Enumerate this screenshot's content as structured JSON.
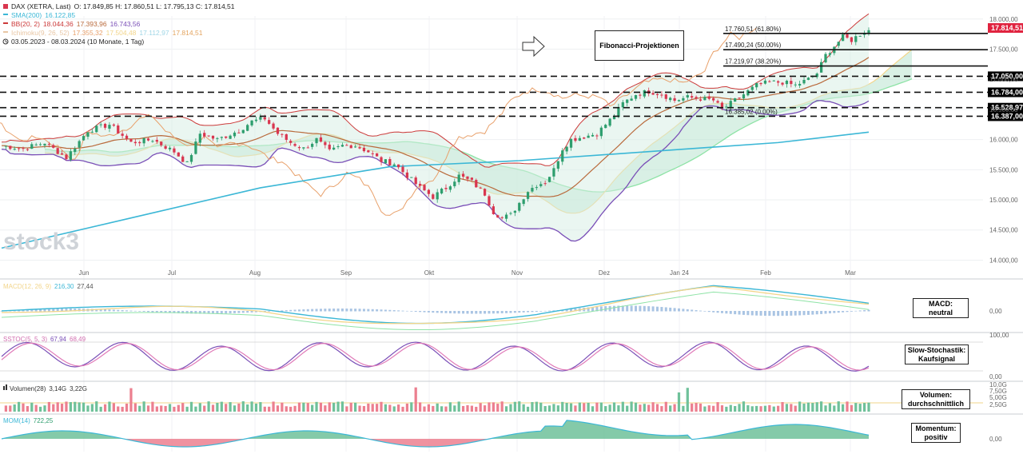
{
  "header": {
    "instrument": "DAX (XETRA, Last)",
    "ohlc": "O: 17.849,85  H: 17.860,51  L: 17.795,13  C: 17.814,51",
    "sma_label": "SMA(200)",
    "sma_value": "16.122,85",
    "bb_label": "BB(20, 2)",
    "bb_values": [
      "18.044,36",
      "17.393,96",
      "16.743,56"
    ],
    "ichimoku_label": "Ichimoku(9, 26, 52)",
    "ichimoku_values": [
      "17.355,32",
      "17.504,48",
      "17.112,97",
      "17.814,51"
    ],
    "period": "03.05.2023 - 08.03.2024  (10 Monate, 1 Tag)"
  },
  "watermark": "stock3",
  "annotations": {
    "fibonacci_box": "Fibonacci-Projektionen",
    "macd_box": [
      "MACD:",
      "neutral"
    ],
    "stoch_box": [
      "Slow-Stochastik:",
      "Kaufsignal"
    ],
    "volume_box": [
      "Volumen:",
      "durchschnittlich"
    ],
    "momentum_box": [
      "Momentum:",
      "positiv"
    ]
  },
  "indicators": {
    "macd": {
      "label": "MACD(12, 26, 9)",
      "values": [
        "216,30",
        "27,44"
      ]
    },
    "stoch": {
      "label": "SSTOC(5, 5, 3)",
      "values": [
        "67,94",
        "68,49"
      ]
    },
    "volume": {
      "label": "Volumen(28)",
      "values": [
        "3,14G",
        "3,22G"
      ]
    },
    "momentum": {
      "label": "MOM(14)",
      "values": [
        "722,25"
      ]
    }
  },
  "colors": {
    "up": "#2e9e6e",
    "down": "#d9364f",
    "sma": "#3bb7d6",
    "bb": "#cc3a3a",
    "bb_band": "#7a4fb7",
    "ichimoku_cloud_up": "#b9e4cf",
    "ichimoku_cloud_down": "#f6c6cf",
    "tenkan": "#e8a06a",
    "kijun": "#b96a3c",
    "chikou": "#f2d58a",
    "price_label_bg": "#e0233f",
    "level_label_bg": "#000000"
  },
  "chart_data": {
    "type": "candlestick",
    "title": "DAX (XETRA, Last)",
    "ylim": [
      13900,
      18050
    ],
    "y_ticks": [
      "18.000,00",
      "17.500,00",
      "17.000,00",
      "16.500,00",
      "16.000,00",
      "15.500,00",
      "15.000,00",
      "14.500,00",
      "14.000,00"
    ],
    "x_ticks": [
      "Jun",
      "Jul",
      "Aug",
      "Sep",
      "Okt",
      "Nov",
      "Dez",
      "Jan 24",
      "Feb",
      "Mar"
    ],
    "close_path": [
      [
        0,
        15900
      ],
      [
        5,
        15850
      ],
      [
        10,
        15950
      ],
      [
        15,
        15700
      ],
      [
        20,
        16150
      ],
      [
        25,
        16250
      ],
      [
        30,
        15950
      ],
      [
        35,
        16000
      ],
      [
        40,
        15800
      ],
      [
        43,
        15600
      ],
      [
        46,
        16100
      ],
      [
        50,
        16000
      ],
      [
        55,
        16150
      ],
      [
        58,
        16300
      ],
      [
        61,
        16350
      ],
      [
        64,
        16100
      ],
      [
        67,
        15950
      ],
      [
        70,
        15850
      ],
      [
        73,
        16000
      ],
      [
        76,
        15800
      ],
      [
        79,
        15900
      ],
      [
        82,
        15900
      ],
      [
        85,
        15800
      ],
      [
        88,
        15650
      ],
      [
        91,
        15600
      ],
      [
        94,
        15400
      ],
      [
        97,
        15200
      ],
      [
        100,
        15050
      ],
      [
        103,
        15200
      ],
      [
        106,
        15400
      ],
      [
        109,
        15300
      ],
      [
        112,
        15100
      ],
      [
        114,
        14800
      ],
      [
        116,
        14700
      ],
      [
        118,
        14750
      ],
      [
        120,
        14950
      ],
      [
        122,
        15150
      ],
      [
        124,
        15250
      ],
      [
        126,
        15300
      ],
      [
        128,
        15500
      ],
      [
        130,
        15850
      ],
      [
        132,
        16000
      ],
      [
        135,
        16050
      ],
      [
        138,
        16100
      ],
      [
        140,
        16250
      ],
      [
        142,
        16400
      ],
      [
        144,
        16600
      ],
      [
        147,
        16750
      ],
      [
        150,
        16800
      ],
      [
        153,
        16750
      ],
      [
        156,
        16650
      ],
      [
        159,
        16700
      ],
      [
        162,
        16680
      ],
      [
        165,
        16650
      ],
      [
        167,
        16500
      ],
      [
        169,
        16600
      ],
      [
        172,
        16750
      ],
      [
        175,
        16900
      ],
      [
        178,
        16950
      ],
      [
        181,
        16950
      ],
      [
        184,
        16900
      ],
      [
        187,
        17000
      ],
      [
        189,
        17100
      ],
      [
        191,
        17400
      ],
      [
        193,
        17550
      ],
      [
        195,
        17700
      ],
      [
        197,
        17650
      ],
      [
        199,
        17750
      ],
      [
        201,
        17814
      ]
    ],
    "last_price": "17.814,51",
    "level_lines": [
      {
        "value": 17050,
        "label": "17.050,00"
      },
      {
        "value": 16784,
        "label": "16.784,00"
      },
      {
        "value": 16529,
        "label": "16.528,97"
      },
      {
        "value": 16387,
        "label": "16.387,00"
      }
    ],
    "fibonacci_levels": [
      {
        "value": 17760.51,
        "label": "17.760,51 (61.80%)"
      },
      {
        "value": 17490.24,
        "label": "17.490,24 (50.00%)"
      },
      {
        "value": 17219.97,
        "label": "17.219,97 (38.20%)"
      },
      {
        "value": 16385.02,
        "label": "16.385,02 (0.00%)"
      }
    ],
    "sma200_path": [
      [
        0,
        14200
      ],
      [
        30,
        14700
      ],
      [
        60,
        15200
      ],
      [
        90,
        15550
      ],
      [
        120,
        15650
      ],
      [
        150,
        15800
      ],
      [
        180,
        15950
      ],
      [
        201,
        16123
      ]
    ],
    "macd_axis": [
      "0,00"
    ],
    "stoch_axis": [
      "100,00",
      "0,00"
    ],
    "volume_axis": [
      "10,0G",
      "7,50G",
      "5,00G",
      "2,50G"
    ],
    "momentum_axis": [
      "0,00"
    ]
  }
}
